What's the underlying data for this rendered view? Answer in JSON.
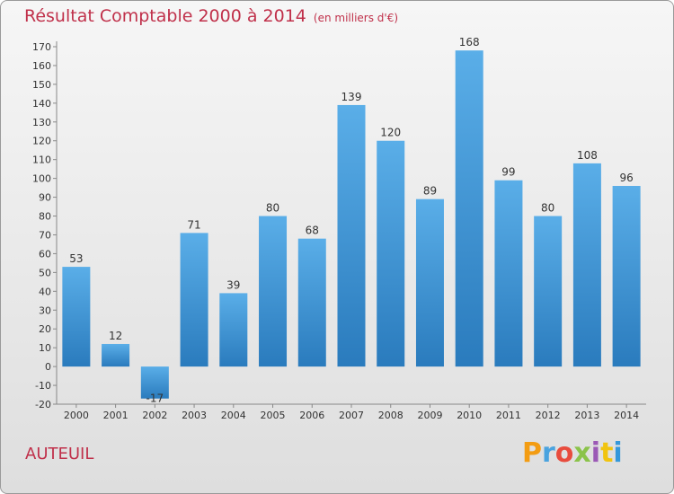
{
  "header": {
    "title": "Résultat Comptable 2000 à 2014",
    "subtitle": "(en milliers d'€)"
  },
  "footer": {
    "commune": "AUTEUIL",
    "logo_letters": [
      {
        "char": "P",
        "color": "#f39c12"
      },
      {
        "char": "r",
        "color": "#4aa3df"
      },
      {
        "char": "o",
        "color": "#e84c3d"
      },
      {
        "char": "x",
        "color": "#8bc34a"
      },
      {
        "char": "i",
        "color": "#9b59b6"
      },
      {
        "char": "t",
        "color": "#f1c40f"
      },
      {
        "char": "i",
        "color": "#3498db"
      }
    ]
  },
  "chart_data": {
    "type": "bar",
    "title": "Résultat Comptable 2000 à 2014",
    "subtitle": "(en milliers d'€)",
    "xlabel": "",
    "ylabel": "",
    "categories": [
      "2000",
      "2001",
      "2002",
      "2003",
      "2004",
      "2005",
      "2006",
      "2007",
      "2008",
      "2009",
      "2010",
      "2011",
      "2012",
      "2013",
      "2014"
    ],
    "values": [
      53,
      12,
      -17,
      71,
      39,
      80,
      68,
      139,
      120,
      89,
      168,
      99,
      80,
      108,
      96
    ],
    "value_labels": [
      "53",
      "12",
      "-17",
      "71",
      "39",
      "80",
      "68",
      "139",
      "120",
      "89",
      "168",
      "99",
      "80",
      "108",
      "96"
    ],
    "ylim": [
      -20,
      170
    ],
    "yticks": [
      -20,
      -10,
      0,
      10,
      20,
      30,
      40,
      50,
      60,
      70,
      80,
      90,
      100,
      110,
      120,
      130,
      140,
      150,
      160,
      170
    ],
    "grid": false,
    "bar_color_top": "#5aaee8",
    "bar_color_bottom": "#2a7bbd"
  }
}
